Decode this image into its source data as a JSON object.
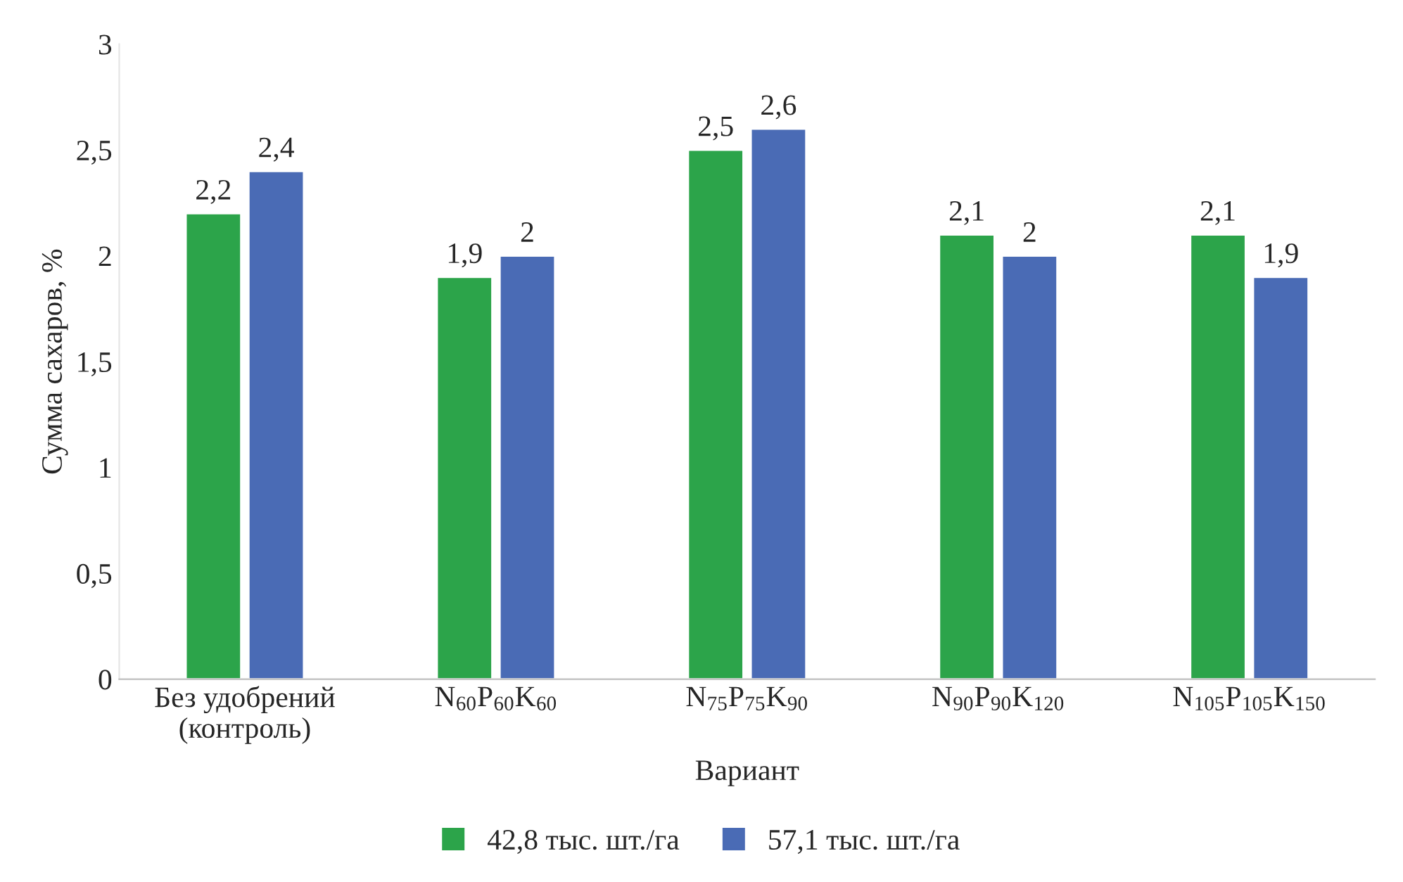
{
  "chart_data": {
    "type": "bar",
    "xlabel": "Вариант",
    "ylabel": "Сумма сахаров, %",
    "categories": [
      "Без удобрений\n(контроль)",
      "N$_{60}$P$_{60}$K$_{60}$",
      "N$_{75}$P$_{75}$K$_{90}$",
      "N$_{90}$P$_{90}$K$_{120}$",
      "N$_{105}$P$_{105}$K$_{150}$"
    ],
    "series": [
      {
        "name": "42,8 тыс. шт./га",
        "color": "#2ca44a",
        "values": [
          2.2,
          1.9,
          2.5,
          2.1,
          2.1
        ],
        "value_labels": [
          "2,2",
          "1,9",
          "2,5",
          "2,1",
          "2,1"
        ]
      },
      {
        "name": "57,1 тыс. шт./га",
        "color": "#4a6bb5",
        "values": [
          2.4,
          2.0,
          2.6,
          2.0,
          1.9
        ],
        "value_labels": [
          "2,4",
          "2",
          "2,6",
          "2",
          "1,9"
        ]
      }
    ],
    "ylim": [
      0,
      3
    ],
    "yticks": [
      0,
      {
        "value": 0.5,
        "label": "0,5"
      },
      1,
      {
        "value": 1.5,
        "label": "1,5"
      },
      2,
      {
        "value": 2.5,
        "label": "2,5"
      },
      3
    ],
    "grid": false,
    "legend": "bottom"
  }
}
